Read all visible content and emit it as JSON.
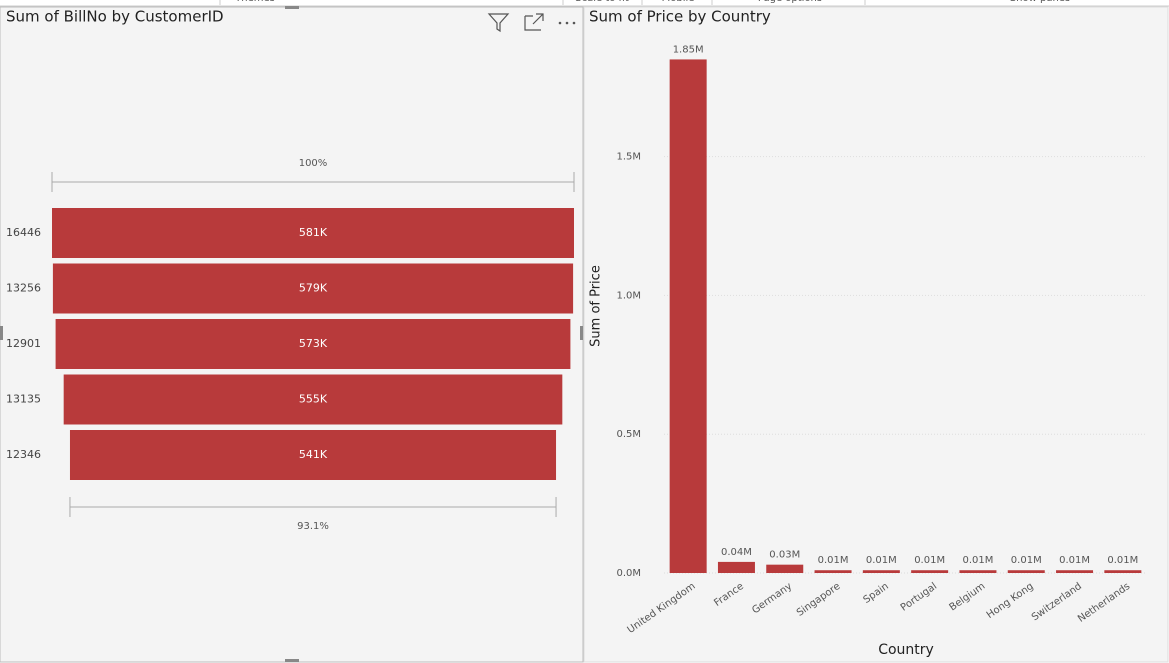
{
  "toolbar": [
    "Themes",
    "Scale to fit",
    "Mobile",
    "Page options",
    "Show panes"
  ],
  "chart_data": [
    {
      "type": "funnel",
      "title": "Sum of BillNo by CustomerID",
      "categories": [
        "16446",
        "13256",
        "12901",
        "13135",
        "12346"
      ],
      "values": [
        581000,
        579000,
        573000,
        555000,
        541000
      ],
      "value_labels": [
        "581K",
        "579K",
        "573K",
        "555K",
        "541K"
      ],
      "top_label": "100%",
      "bottom_label": "93.1%",
      "color": "#b83a3b"
    },
    {
      "type": "bar",
      "title": "Sum of Price by Country",
      "x_label": "Country",
      "y_label": "Sum of Price",
      "categories": [
        "United Kingdom",
        "France",
        "Germany",
        "Singapore",
        "Spain",
        "Portugal",
        "Belgium",
        "Hong Kong",
        "Switzerland",
        "Netherlands"
      ],
      "values": [
        1850000,
        40000,
        30000,
        10000,
        10000,
        10000,
        10000,
        10000,
        10000,
        10000
      ],
      "value_labels": [
        "1.85M",
        "0.04M",
        "0.03M",
        "0.01M",
        "0.01M",
        "0.01M",
        "0.01M",
        "0.01M",
        "0.01M",
        "0.01M"
      ],
      "ylim": [
        0,
        1920000
      ],
      "yticks": [
        {
          "value": 0,
          "label": "0.0M"
        },
        {
          "value": 500000,
          "label": "0.5M"
        },
        {
          "value": 1000000,
          "label": "1.0M"
        },
        {
          "value": 1500000,
          "label": "1.5M"
        }
      ],
      "grid": true,
      "color": "#b83a3b"
    }
  ]
}
